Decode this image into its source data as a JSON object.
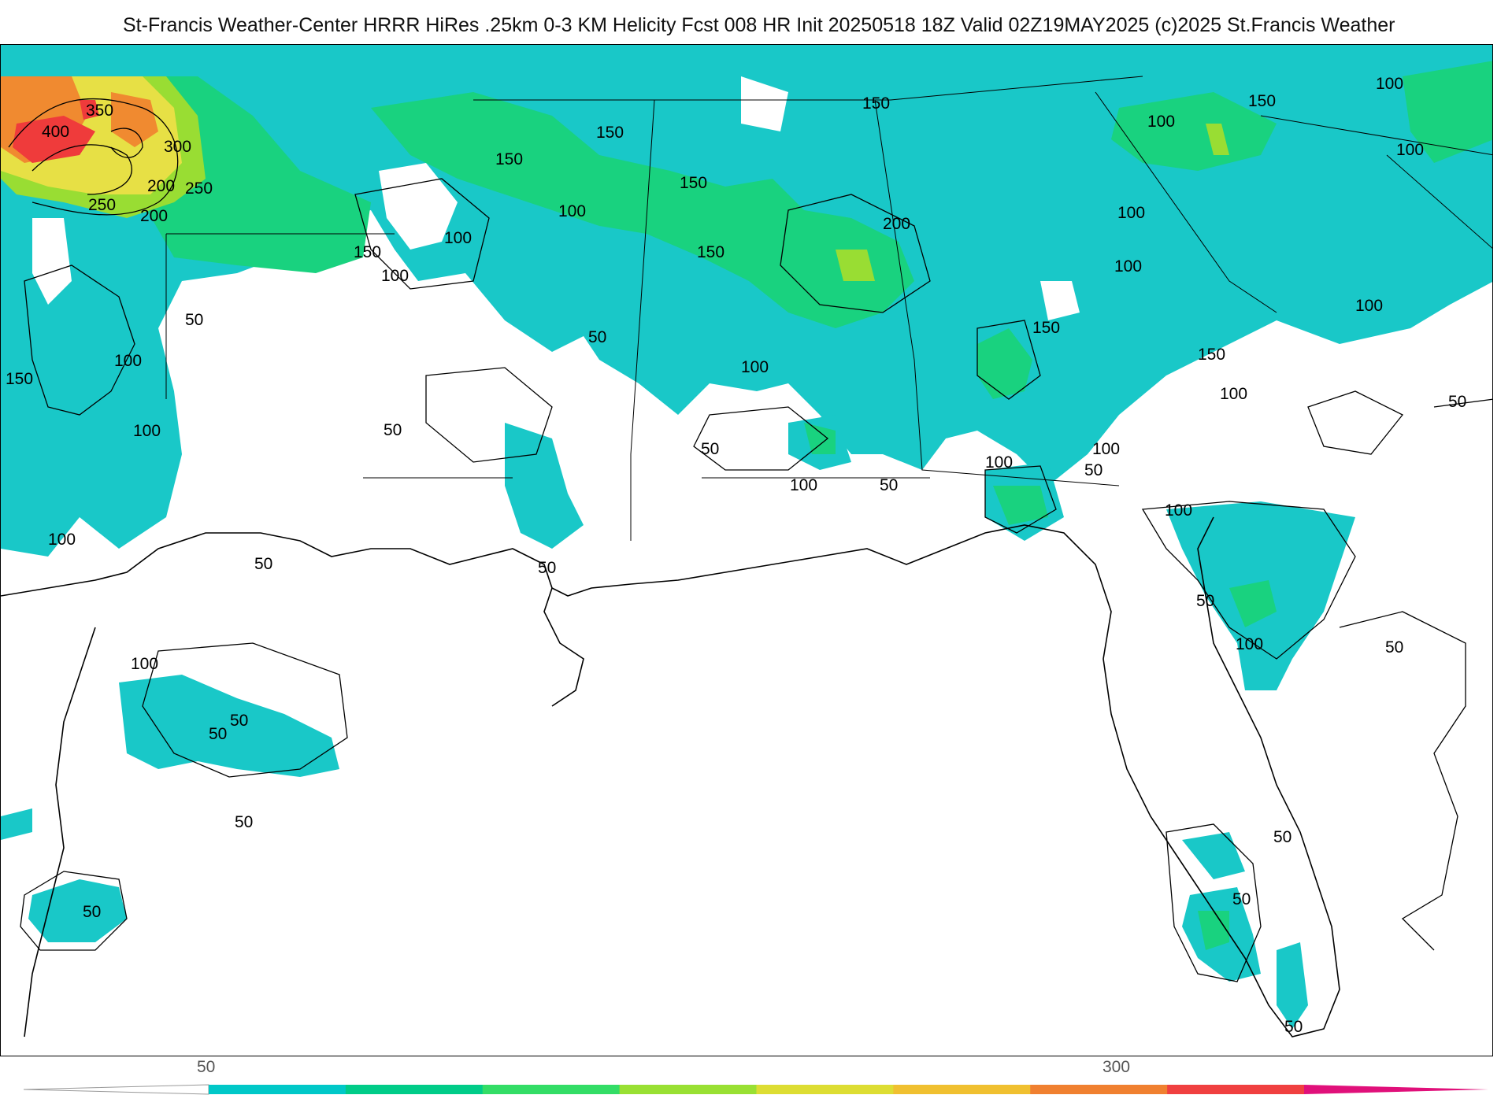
{
  "header": {
    "title": "St-Francis Weather-Center HRRR HiRes .25km 0-3 KM Helicity Fcst 008 HR Init 20250518 18Z  Valid 02Z19MAY2025    (c)2025 St.Francis Weather"
  },
  "map": {
    "region": "Gulf Coast / Southeastern US",
    "field": "0-3 KM Helicity",
    "contour_labels": {
      "l50": "50",
      "l100": "100",
      "l150": "150",
      "l200": "200",
      "l250": "250",
      "l300": "300",
      "l350": "350",
      "l400": "400"
    }
  },
  "colorbar": {
    "tick_labels": [
      "50",
      "300"
    ],
    "colors": [
      "#00c8c8",
      "#00cc88",
      "#33dd66",
      "#99e033",
      "#dddd33",
      "#f0c030",
      "#f08030",
      "#f04040",
      "#e0107a"
    ]
  },
  "colors": {
    "cyan": "#19c8c8",
    "green": "#19d27f",
    "lime": "#99dd33",
    "yellow": "#e7e045",
    "orange": "#f08a30",
    "red": "#ef3b3b",
    "background": "#ffffff"
  }
}
